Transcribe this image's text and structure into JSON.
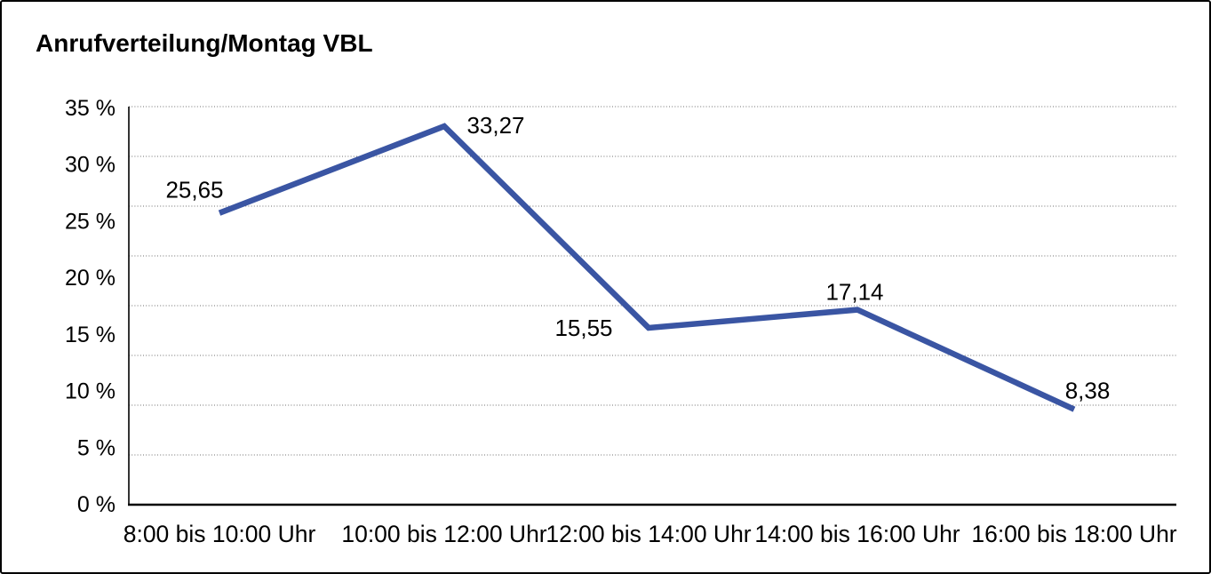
{
  "chart_data": {
    "type": "line",
    "title": "Anrufverteilung/Montag VBL",
    "categories": [
      "8:00 bis 10:00 Uhr",
      "10:00 bis 12:00 Uhr",
      "12:00 bis 14:00 Uhr",
      "14:00 bis 16:00 Uhr",
      "16:00 bis 18:00 Uhr"
    ],
    "values": [
      25.65,
      33.27,
      15.55,
      17.14,
      8.38
    ],
    "value_labels": [
      "25,65",
      "33,27",
      "15,55",
      "17,14",
      "8,38"
    ],
    "ytick_labels": [
      "35 %",
      "30 %",
      "25 %",
      "20 %",
      "15 %",
      "10 %",
      "5 %",
      "0 %"
    ],
    "ylim": [
      0,
      35
    ],
    "xlabel": "",
    "ylabel": "",
    "legend": "none",
    "grid": "horizontal-dotted",
    "line_color": "#3A55A3",
    "axis_color": "#000000",
    "grid_color": "#6F6F6F",
    "text_color": "#000000"
  }
}
